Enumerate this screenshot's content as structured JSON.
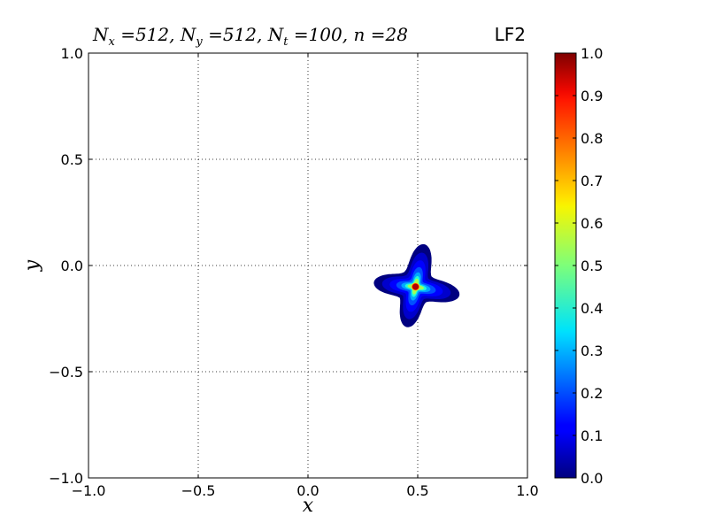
{
  "chart_data": {
    "type": "heatmap",
    "title": "N_x =512, N_y =512, N_t =100, n =28",
    "title_right": "LF2",
    "xlabel": "x",
    "ylabel": "y",
    "xlim": [
      -1.0,
      1.0
    ],
    "ylim": [
      -1.0,
      1.0
    ],
    "x_ticks": [
      -1.0,
      -0.5,
      0.0,
      0.5,
      1.0
    ],
    "y_ticks": [
      -1.0,
      -0.5,
      0.0,
      0.5,
      1.0
    ],
    "x_tick_labels": [
      "−1.0",
      "−0.5",
      "0.0",
      "0.5",
      "1.0"
    ],
    "y_tick_labels": [
      "−1.0",
      "−0.5",
      "0.0",
      "0.5",
      "1.0"
    ],
    "grid": true,
    "colormap": "jet",
    "colorbar": {
      "min": 0.0,
      "max": 1.0,
      "ticks": [
        0.0,
        0.1,
        0.2,
        0.3,
        0.4,
        0.5,
        0.6,
        0.7,
        0.8,
        0.9,
        1.0
      ],
      "tick_labels": [
        "0.0",
        "0.1",
        "0.2",
        "0.3",
        "0.4",
        "0.5",
        "0.6",
        "0.7",
        "0.8",
        "0.9",
        "1.0"
      ]
    },
    "peak": {
      "x": 0.49,
      "y": -0.1,
      "value": 1.0
    },
    "shape": "four-lobed star (rotated cross) centered near the peak",
    "lobes": [
      {
        "direction": "up",
        "tip_x": 0.53,
        "tip_y": 0.1
      },
      {
        "direction": "right",
        "tip_x": 0.69,
        "tip_y": -0.14
      },
      {
        "direction": "down",
        "tip_x": 0.45,
        "tip_y": -0.29
      },
      {
        "direction": "left",
        "tip_x": 0.3,
        "tip_y": -0.08
      }
    ]
  }
}
